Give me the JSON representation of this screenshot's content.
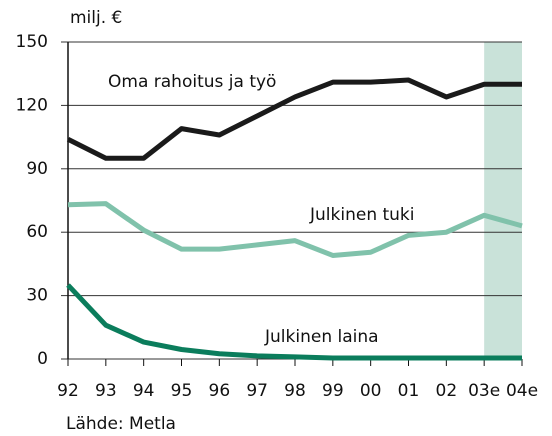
{
  "chart_data": {
    "type": "line",
    "y_label": "milj. €",
    "source": "Lähde: Metla",
    "categories": [
      "92",
      "93",
      "94",
      "95",
      "96",
      "97",
      "98",
      "99",
      "00",
      "01",
      "02",
      "03e",
      "04e"
    ],
    "highlight_from": "03e",
    "highlight_color": "#c9e2d9",
    "series": [
      {
        "name": "Oma rahoitus ja työ",
        "color": "#1a1a1a",
        "values": [
          104,
          95,
          95,
          109,
          106,
          115,
          124,
          131,
          131,
          132,
          124,
          130,
          130
        ]
      },
      {
        "name": "Julkinen tuki",
        "color": "#80c2ab",
        "values": [
          73,
          73.5,
          61,
          52,
          52,
          54,
          56,
          49,
          50.5,
          58.5,
          60,
          68,
          63
        ]
      },
      {
        "name": "Julkinen laina",
        "color": "#0b7d5c",
        "values": [
          35,
          16,
          8,
          4.5,
          2.5,
          1.5,
          1,
          0.5,
          0.5,
          0.5,
          0.5,
          0.5,
          0.5
        ]
      }
    ],
    "ylim": [
      0,
      150
    ],
    "yticks": [
      0,
      30,
      60,
      90,
      120,
      150
    ],
    "grid": true
  }
}
